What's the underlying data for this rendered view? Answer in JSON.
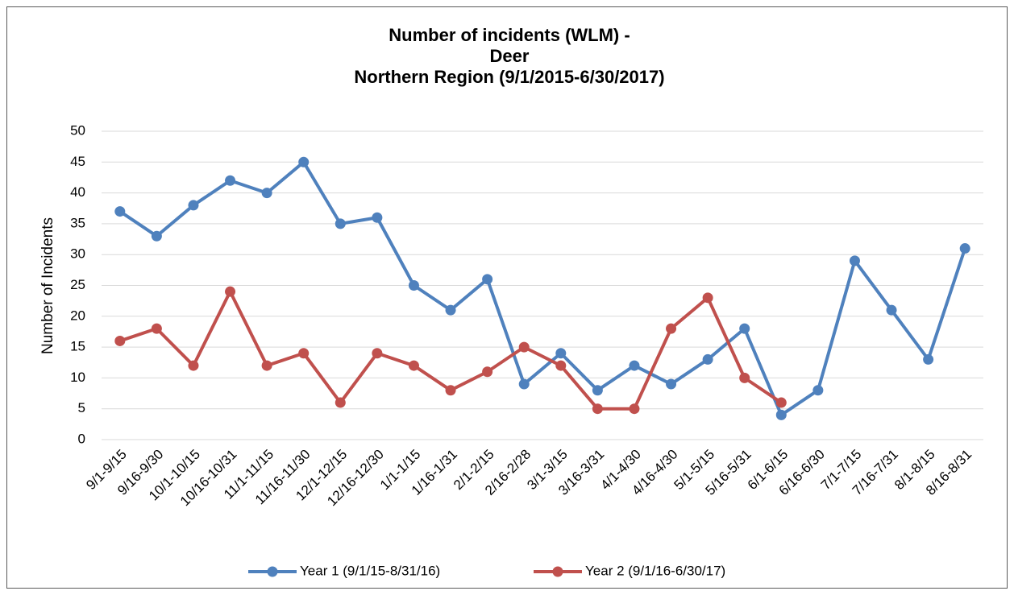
{
  "chart_data": {
    "type": "line",
    "title": [
      "Number of incidents (WLM) -",
      "Deer",
      "Northern Region (9/1/2015-6/30/2017)"
    ],
    "y_label": "Number of Incidents",
    "categories": [
      "9/1-9/15",
      "9/16-9/30",
      "10/1-10/15",
      "10/16-10/31",
      "11/1-11/15",
      "11/16-11/30",
      "12/1-12/15",
      "12/16-12/30",
      "1/1-1/15",
      "1/16-1/31",
      "2/1-2/15",
      "2/16-2/28",
      "3/1-3/15",
      "3/16-3/31",
      "4/1-4/30",
      "4/16-4/30",
      "5/1-5/15",
      "5/16-5/31",
      "6/1-6/15",
      "6/16-6/30",
      "7/1-7/15",
      "7/16-7/31",
      "8/1-8/15",
      "8/16-8/31"
    ],
    "series": [
      {
        "name": "Year 1 (9/1/15-8/31/16)",
        "color": "#4f81bd",
        "values": [
          37,
          33,
          38,
          42,
          40,
          45,
          35,
          36,
          25,
          21,
          26,
          9,
          14,
          8,
          12,
          9,
          13,
          18,
          4,
          8,
          29,
          21,
          13,
          31
        ]
      },
      {
        "name": "Year 2 (9/1/16-6/30/17)",
        "color": "#c0504d",
        "values": [
          16,
          18,
          12,
          24,
          12,
          14,
          6,
          14,
          12,
          8,
          11,
          15,
          12,
          5,
          5,
          18,
          23,
          10,
          6,
          null,
          null,
          null,
          null,
          null
        ]
      }
    ],
    "ylim": [
      0,
      50
    ],
    "yticks": [
      0,
      5,
      10,
      15,
      20,
      25,
      30,
      35,
      40,
      45,
      50
    ],
    "grid": true,
    "legend": "bottom"
  }
}
